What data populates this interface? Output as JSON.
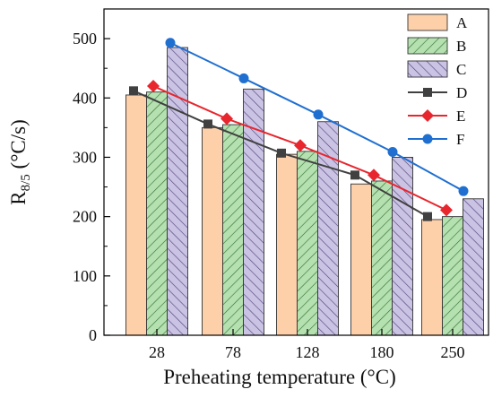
{
  "chart_data": {
    "type": "bar",
    "xlabel": "Preheating temperature (°C)",
    "ylabel_main": "R",
    "ylabel_sub": "8/5",
    "ylabel_unit": " (°C/s)",
    "categories": [
      "28",
      "78",
      "128",
      "180",
      "250"
    ],
    "ylim": [
      0,
      550
    ],
    "yticks": [
      "0",
      "100",
      "200",
      "300",
      "400",
      "500"
    ],
    "grid": false,
    "legend_position": "top-right",
    "bar_series": [
      {
        "name": "A",
        "values": [
          405,
          350,
          305,
          255,
          195
        ]
      },
      {
        "name": "B",
        "values": [
          410,
          355,
          310,
          260,
          200
        ]
      },
      {
        "name": "C",
        "values": [
          485,
          415,
          360,
          300,
          230
        ]
      }
    ],
    "line_series": [
      {
        "name": "D",
        "values": [
          412,
          356,
          307,
          270,
          200
        ]
      },
      {
        "name": "E",
        "values": [
          420,
          365,
          320,
          270,
          211
        ]
      },
      {
        "name": "F",
        "values": [
          493,
          433,
          372,
          309,
          243
        ]
      }
    ],
    "colors": {
      "A_fill": "#fdd0aa",
      "B_fill": "#b5e0b0",
      "C_fill": "#cbc3e3",
      "D": "#404040",
      "E": "#e8262e",
      "F": "#1f6fd0"
    }
  }
}
